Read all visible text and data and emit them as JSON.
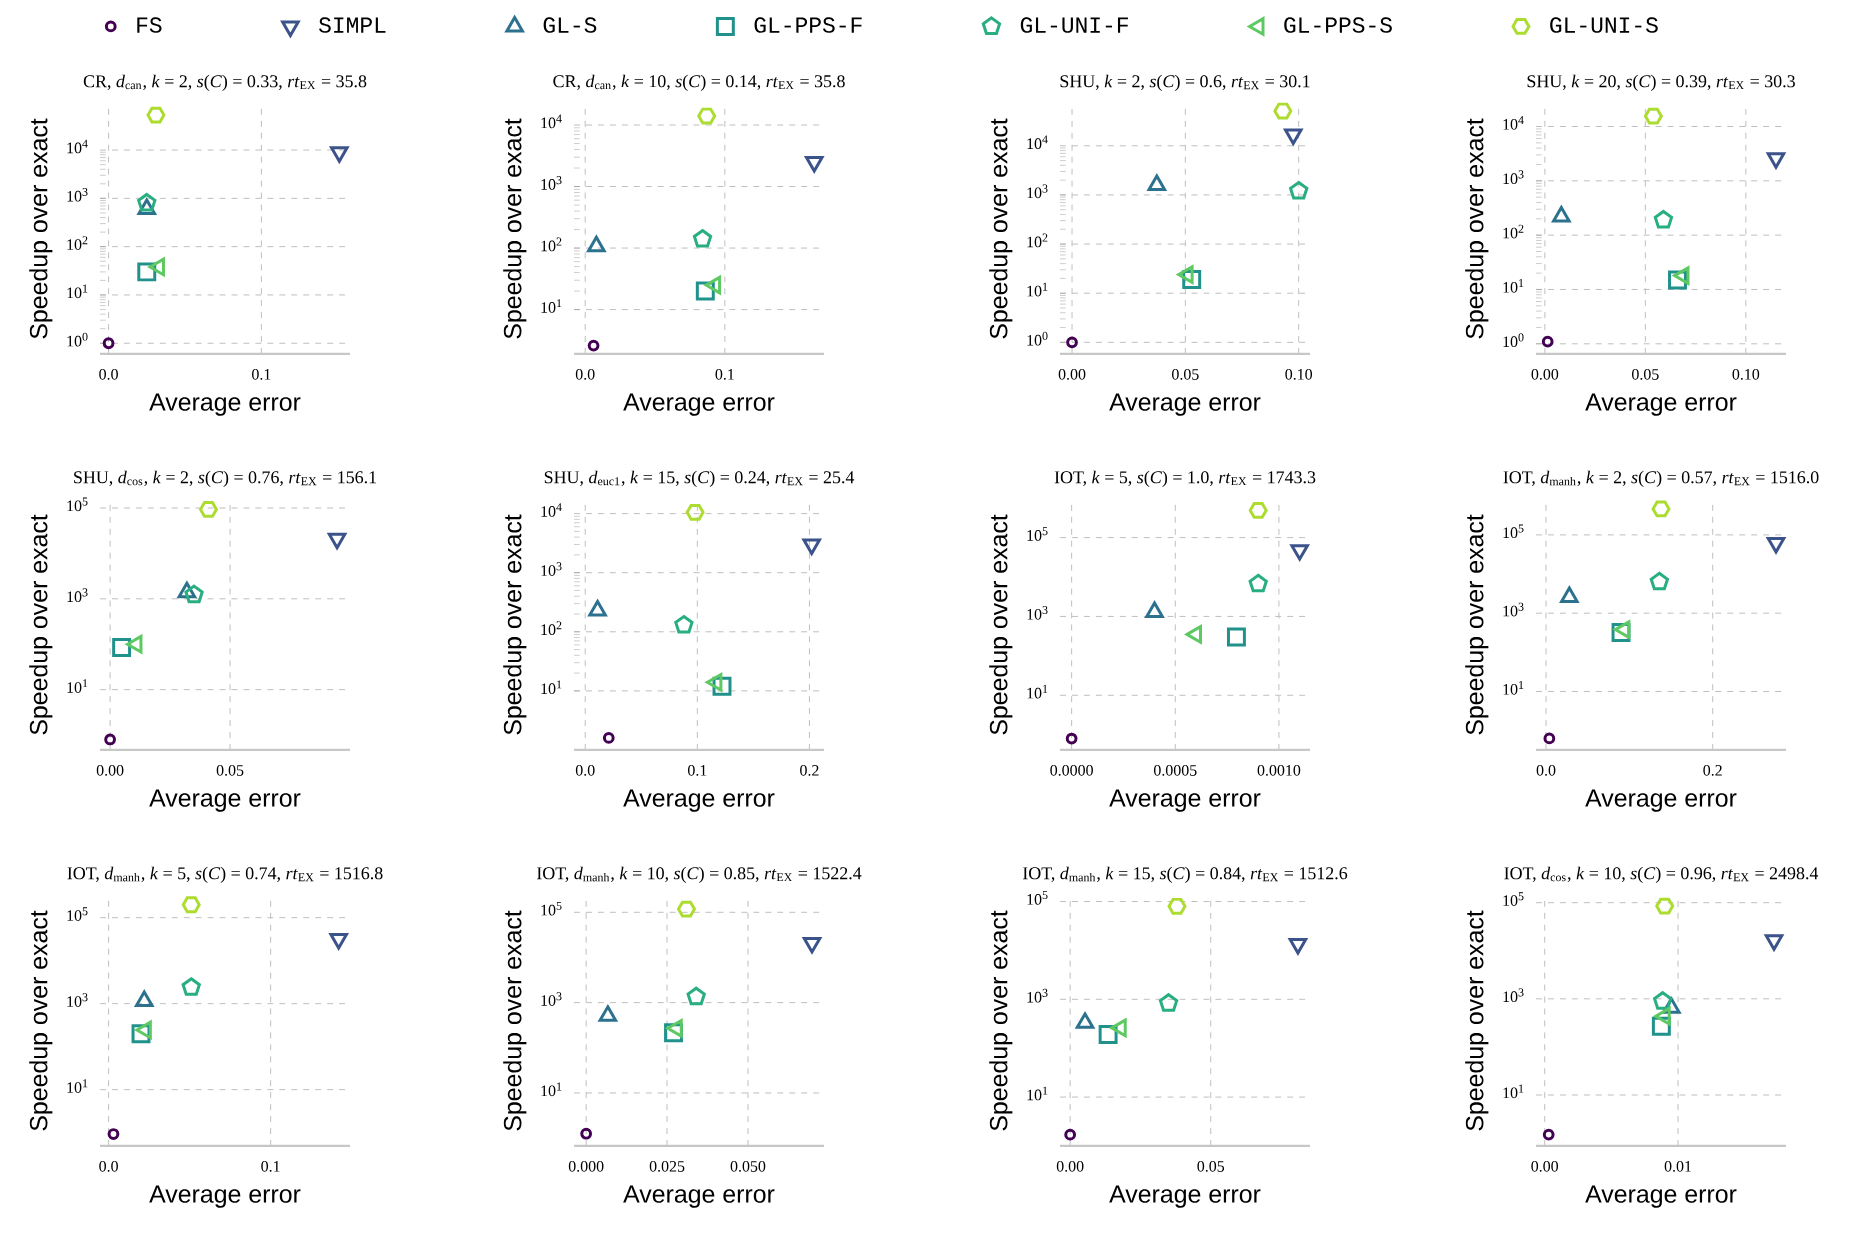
{
  "chart_data": [
    {
      "type": "scatter",
      "title": "CR, *d*$_{can}$, *k* = 2, *s*(*C*) = 0.33, *rt*$_{EX}$ = 35.8",
      "xlabel": "Average error",
      "ylabel": "Speedup over exact",
      "log": true,
      "grid": true,
      "legend": "top",
      "xlim": [
        -0.0056,
        0.158
      ],
      "ylim": [
        0.6,
        90000
      ],
      "xticks": [
        {
          "value": 0,
          "label": "0.0"
        },
        {
          "value": 0.1,
          "label": "0.1"
        }
      ],
      "yticks": [
        {
          "value": 1,
          "label": "10$^{0}$"
        },
        {
          "value": 10,
          "label": "10$^{1}$"
        },
        {
          "value": 100,
          "label": "10$^{2}$"
        },
        {
          "value": 1000,
          "label": "10$^{3}$"
        },
        {
          "value": 10000,
          "label": "10$^{4}$"
        }
      ],
      "series": [
        {
          "name": "FS",
          "color": "#440154",
          "marker": "circle",
          "x": [
            0
          ],
          "values": [
            1
          ]
        },
        {
          "name": "SIMPL",
          "color": "#3b528b",
          "marker": "triangle_down",
          "x": [
            0.151
          ],
          "values": [
            9000
          ]
        },
        {
          "name": "GL-S",
          "color": "#2c728e",
          "marker": "triangle",
          "x": [
            0.025
          ],
          "values": [
            600
          ]
        },
        {
          "name": "GL-PPS-F",
          "color": "#21918c",
          "marker": "square",
          "x": [
            0.025
          ],
          "values": [
            30
          ]
        },
        {
          "name": "GL-UNI-F",
          "color": "#28ae80",
          "x": [
            0.025
          ],
          "values": [
            800
          ]
        },
        {
          "name": "GL-PPS-S",
          "color": "#5ec962",
          "marker": "triangle_left",
          "x": [
            0.033
          ],
          "values": [
            38
          ]
        },
        {
          "name": "GL-UNI-S",
          "color": "#addc30",
          "x": [
            0.031
          ],
          "values": [
            53000
          ]
        }
      ]
    },
    {
      "type": "scatter",
      "title": "CR, *d*$_{can}$, *k* = 10, *s*(*C*) = 0.14, *rt*$_{EX}$ = 35.8",
      "xlabel": "Average error",
      "ylabel": "Speedup over exact",
      "log": true,
      "grid": true,
      "xlim": [
        -0.008,
        0.171
      ],
      "ylim": [
        1.9,
        22000
      ],
      "xticks": [
        {
          "value": 0,
          "label": "0.0"
        },
        {
          "value": 0.1,
          "label": "0.1"
        }
      ],
      "yticks": [
        {
          "value": 10,
          "label": "10$^{1}$"
        },
        {
          "value": 100,
          "label": "10$^{2}$"
        },
        {
          "value": 1000,
          "label": "10$^{3}$"
        },
        {
          "value": 10000,
          "label": "10$^{4}$"
        }
      ],
      "series": [
        {
          "color": "#440154",
          "marker": "circle",
          "x": [
            0.006
          ],
          "values": [
            2.6
          ]
        },
        {
          "color": "#3b528b",
          "marker": "triangle_down",
          "x": [
            0.164
          ],
          "values": [
            2500
          ]
        },
        {
          "color": "#2c728e",
          "marker": "triangle",
          "x": [
            0.008
          ],
          "values": [
            107
          ]
        },
        {
          "color": "#21918c",
          "marker": "square",
          "x": [
            0.086
          ],
          "values": [
            20
          ]
        },
        {
          "color": "#28ae80",
          "x": [
            0.084
          ],
          "values": [
            140
          ]
        },
        {
          "color": "#5ec962",
          "marker": "triangle_left",
          "x": [
            0.093
          ],
          "values": [
            25
          ]
        },
        {
          "color": "#addc30",
          "x": [
            0.087
          ],
          "values": [
            14000
          ]
        }
      ]
    },
    {
      "type": "scatter",
      "title": "SHU, *k* = 2, *s*(*C*) = 0.6, *rt*$_{EX}$ = 30.1",
      "xlabel": "Average error",
      "ylabel": "Speedup over exact",
      "log": true,
      "grid": true,
      "xlim": [
        -0.0053,
        0.105
      ],
      "ylim": [
        0.58,
        71000
      ],
      "xticks": [
        {
          "value": 0,
          "label": "0.00"
        },
        {
          "value": 0.05,
          "label": "0.05"
        },
        {
          "value": 0.1,
          "label": "0.10"
        }
      ],
      "yticks": [
        {
          "value": 1,
          "label": "10$^{0}$"
        },
        {
          "value": 10,
          "label": "10$^{1}$"
        },
        {
          "value": 100,
          "label": "10$^{2}$"
        },
        {
          "value": 1000,
          "label": "10$^{3}$"
        },
        {
          "value": 10000,
          "label": "10$^{4}$"
        }
      ],
      "series": [
        {
          "color": "#440154",
          "marker": "circle",
          "x": [
            0
          ],
          "values": [
            1
          ]
        },
        {
          "color": "#3b528b",
          "marker": "triangle_down",
          "x": [
            0.0976
          ],
          "values": [
            17000
          ]
        },
        {
          "color": "#2c728e",
          "marker": "triangle",
          "x": [
            0.0374
          ],
          "values": [
            1600
          ]
        },
        {
          "color": "#21918c",
          "marker": "square",
          "x": [
            0.0528
          ],
          "values": [
            19
          ]
        },
        {
          "color": "#28ae80",
          "x": [
            0.1
          ],
          "values": [
            1200
          ]
        },
        {
          "color": "#5ec962",
          "marker": "triangle_left",
          "x": [
            0.051
          ],
          "values": [
            24
          ]
        },
        {
          "color": "#addc30",
          "x": [
            0.093
          ],
          "values": [
            51000
          ]
        }
      ]
    },
    {
      "type": "scatter",
      "title": "SHU, *k* = 20, *s*(*C*) = 0.39, *rt*$_{EX}$ = 30.3",
      "xlabel": "Average error",
      "ylabel": "Speedup over exact",
      "log": true,
      "grid": true,
      "xlim": [
        -0.0044,
        0.12
      ],
      "ylim": [
        0.65,
        26000
      ],
      "xticks": [
        {
          "value": 0,
          "label": "0.00"
        },
        {
          "value": 0.05,
          "label": "0.05"
        },
        {
          "value": 0.1,
          "label": "0.10"
        }
      ],
      "yticks": [
        {
          "value": 1,
          "label": "10$^{0}$"
        },
        {
          "value": 10,
          "label": "10$^{1}$"
        },
        {
          "value": 100,
          "label": "10$^{2}$"
        },
        {
          "value": 1000,
          "label": "10$^{3}$"
        },
        {
          "value": 10000,
          "label": "10$^{4}$"
        }
      ],
      "series": [
        {
          "color": "#440154",
          "marker": "circle",
          "x": [
            0.0014
          ],
          "values": [
            1.1
          ]
        },
        {
          "color": "#3b528b",
          "marker": "triangle_down",
          "x": [
            0.115
          ],
          "values": [
            2600
          ]
        },
        {
          "color": "#2c728e",
          "marker": "triangle",
          "x": [
            0.0082
          ],
          "values": [
            220
          ]
        },
        {
          "color": "#21918c",
          "marker": "square",
          "x": [
            0.066
          ],
          "values": [
            15
          ]
        },
        {
          "color": "#28ae80",
          "x": [
            0.059
          ],
          "values": [
            190
          ]
        },
        {
          "color": "#5ec962",
          "marker": "triangle_left",
          "x": [
            0.069
          ],
          "values": [
            18
          ]
        },
        {
          "color": "#addc30",
          "x": [
            0.054
          ],
          "values": [
            15500
          ]
        }
      ]
    },
    {
      "type": "scatter",
      "title": "SHU, *d*$_{cos}$, *k* = 2, *s*(*C*) = 0.76, *rt*$_{EX}$ = 156.1",
      "xlabel": "Average error",
      "ylabel": "Speedup over exact",
      "log": true,
      "grid": true,
      "xlim": [
        -0.0042,
        0.1
      ],
      "ylim": [
        0.47,
        150000
      ],
      "xticks": [
        {
          "value": 0,
          "label": "0.00"
        },
        {
          "value": 0.05,
          "label": "0.05"
        }
      ],
      "yticks": [
        {
          "value": 10,
          "label": "10$^{1}$"
        },
        {
          "value": 1000,
          "label": "10$^{3}$"
        },
        {
          "value": 100000,
          "label": "10$^{5}$"
        }
      ],
      "series": [
        {
          "color": "#440154",
          "marker": "circle",
          "x": [
            0
          ],
          "values": [
            0.8
          ]
        },
        {
          "color": "#3b528b",
          "marker": "triangle_down",
          "x": [
            0.0946
          ],
          "values": [
            21000
          ]
        },
        {
          "color": "#2c728e",
          "marker": "triangle",
          "x": [
            0.032
          ],
          "values": [
            1400
          ]
        },
        {
          "color": "#21918c",
          "marker": "square",
          "x": [
            0.0048
          ],
          "values": [
            85
          ]
        },
        {
          "color": "#28ae80",
          "x": [
            0.035
          ],
          "values": [
            1230
          ]
        },
        {
          "color": "#5ec962",
          "marker": "triangle_left",
          "x": [
            0.011
          ],
          "values": [
            100
          ]
        },
        {
          "color": "#addc30",
          "x": [
            0.041
          ],
          "values": [
            93000
          ]
        }
      ]
    },
    {
      "type": "scatter",
      "title": "SHU, *d*$_{euc1}$, *k* = 15, *s*(*C*) = 0.24, *rt*$_{EX}$ = 25.4",
      "xlabel": "Average error",
      "ylabel": "Speedup over exact",
      "log": true,
      "grid": true,
      "xlim": [
        -0.01,
        0.213
      ],
      "ylim": [
        1.0,
        17000
      ],
      "xticks": [
        {
          "value": 0,
          "label": "0.0"
        },
        {
          "value": 0.1,
          "label": "0.1"
        },
        {
          "value": 0.2,
          "label": "0.2"
        }
      ],
      "yticks": [
        {
          "value": 10,
          "label": "10$^{1}$"
        },
        {
          "value": 100,
          "label": "10$^{2}$"
        },
        {
          "value": 1000,
          "label": "10$^{3}$"
        },
        {
          "value": 10000,
          "label": "10$^{4}$"
        }
      ],
      "series": [
        {
          "color": "#440154",
          "marker": "circle",
          "x": [
            0.021
          ],
          "values": [
            1.6
          ]
        },
        {
          "color": "#3b528b",
          "marker": "triangle_down",
          "x": [
            0.202
          ],
          "values": [
            3000
          ]
        },
        {
          "color": "#2c728e",
          "marker": "triangle",
          "x": [
            0.011
          ],
          "values": [
            230
          ]
        },
        {
          "color": "#21918c",
          "marker": "square",
          "x": [
            0.122
          ],
          "values": [
            12
          ]
        },
        {
          "color": "#28ae80",
          "x": [
            0.088
          ],
          "values": [
            130
          ]
        },
        {
          "color": "#5ec962",
          "marker": "triangle_left",
          "x": [
            0.117
          ],
          "values": [
            14
          ]
        },
        {
          "color": "#addc30",
          "x": [
            0.098
          ],
          "values": [
            10500
          ]
        }
      ]
    },
    {
      "type": "scatter",
      "title": "IOT, *k* = 5, *s*(*C*) = 1.0, *rt*$_{EX}$ = 1743.3",
      "xlabel": "Average error",
      "ylabel": "Speedup over exact",
      "log": true,
      "grid": true,
      "xlim": [
        -5.6e-05,
        0.00115
      ],
      "ylim": [
        0.41,
        900000
      ],
      "xticks": [
        {
          "value": 0,
          "label": "0.0000"
        },
        {
          "value": 0.0005,
          "label": "0.0005"
        },
        {
          "value": 0.001,
          "label": "0.0010"
        }
      ],
      "yticks": [
        {
          "value": 10,
          "label": "10$^{1}$"
        },
        {
          "value": 1000,
          "label": "10$^{3}$"
        },
        {
          "value": 100000,
          "label": "10$^{5}$"
        }
      ],
      "series": [
        {
          "color": "#440154",
          "marker": "circle",
          "x": [
            0
          ],
          "values": [
            0.8
          ]
        },
        {
          "color": "#3b528b",
          "marker": "triangle_down",
          "x": [
            0.0011
          ],
          "values": [
            48000
          ]
        },
        {
          "color": "#2c728e",
          "marker": "triangle",
          "x": [
            0.0004
          ],
          "values": [
            1300
          ]
        },
        {
          "color": "#21918c",
          "marker": "square",
          "x": [
            0.000795
          ],
          "values": [
            300
          ]
        },
        {
          "color": "#28ae80",
          "x": [
            0.0009
          ],
          "values": [
            6700
          ]
        },
        {
          "color": "#5ec962",
          "marker": "triangle_left",
          "x": [
            0.0006
          ],
          "values": [
            350
          ]
        },
        {
          "color": "#addc30",
          "x": [
            0.0009
          ],
          "values": [
            490000
          ]
        }
      ]
    },
    {
      "type": "scatter",
      "title": "IOT, *d*$_{manh}$, *k* = 2, *s*(*C*) = 0.57, *rt*$_{EX}$ = 1516.0",
      "xlabel": "Average error",
      "ylabel": "Speedup over exact",
      "log": true,
      "grid": true,
      "xlim": [
        -0.012,
        0.288
      ],
      "ylim": [
        0.32,
        780000
      ],
      "xticks": [
        {
          "value": 0,
          "label": "0.0"
        },
        {
          "value": 0.2,
          "label": "0.2"
        }
      ],
      "yticks": [
        {
          "value": 10,
          "label": "10$^{1}$"
        },
        {
          "value": 1000,
          "label": "10$^{3}$"
        },
        {
          "value": 100000,
          "label": "10$^{5}$"
        }
      ],
      "series": [
        {
          "color": "#440154",
          "marker": "circle",
          "x": [
            0.004
          ],
          "values": [
            0.63
          ]
        },
        {
          "color": "#3b528b",
          "marker": "triangle_down",
          "x": [
            0.276
          ],
          "values": [
            62000
          ]
        },
        {
          "color": "#2c728e",
          "marker": "triangle",
          "x": [
            0.028
          ],
          "values": [
            2600
          ]
        },
        {
          "color": "#21918c",
          "marker": "square",
          "x": [
            0.09
          ],
          "values": [
            320
          ]
        },
        {
          "color": "#28ae80",
          "x": [
            0.136
          ],
          "values": [
            6300
          ]
        },
        {
          "color": "#5ec962",
          "marker": "triangle_left",
          "x": [
            0.094
          ],
          "values": [
            380
          ]
        },
        {
          "color": "#addc30",
          "x": [
            0.138
          ],
          "values": [
            460000
          ]
        }
      ]
    },
    {
      "type": "scatter",
      "title": "IOT, *d*$_{manh}$, *k* = 5, *s*(*C*) = 0.74, *rt*$_{EX}$ = 1516.8",
      "xlabel": "Average error",
      "ylabel": "Speedup over exact",
      "log": true,
      "grid": true,
      "xlim": [
        -0.0053,
        0.149
      ],
      "ylim": [
        0.49,
        320000
      ],
      "xticks": [
        {
          "value": 0,
          "label": "0.0"
        },
        {
          "value": 0.1,
          "label": "0.1"
        }
      ],
      "yticks": [
        {
          "value": 10,
          "label": "10$^{1}$"
        },
        {
          "value": 1000,
          "label": "10$^{3}$"
        },
        {
          "value": 100000,
          "label": "10$^{5}$"
        }
      ],
      "series": [
        {
          "color": "#440154",
          "marker": "circle",
          "x": [
            0.003
          ],
          "values": [
            0.93
          ]
        },
        {
          "color": "#3b528b",
          "marker": "triangle_down",
          "x": [
            0.142
          ],
          "values": [
            32000
          ]
        },
        {
          "color": "#2c728e",
          "marker": "triangle",
          "x": [
            0.022
          ],
          "values": [
            1150
          ]
        },
        {
          "color": "#21918c",
          "marker": "square",
          "x": [
            0.02
          ],
          "values": [
            200
          ]
        },
        {
          "color": "#28ae80",
          "x": [
            0.051
          ],
          "values": [
            2400
          ]
        },
        {
          "color": "#5ec962",
          "marker": "triangle_left",
          "x": [
            0.023
          ],
          "values": [
            245
          ]
        },
        {
          "color": "#addc30",
          "x": [
            0.051
          ],
          "values": [
            200000
          ]
        }
      ]
    },
    {
      "type": "scatter",
      "title": "IOT, *d*$_{manh}$, *k* = 10, *s*(*C*) = 0.85, *rt*$_{EX}$ = 1522.4",
      "xlabel": "Average error",
      "ylabel": "Speedup over exact",
      "log": true,
      "grid": true,
      "xlim": [
        -0.00375,
        0.0735
      ],
      "ylim": [
        0.67,
        230000
      ],
      "xticks": [
        {
          "value": 0,
          "label": "0.000"
        },
        {
          "value": 0.025,
          "label": "0.025"
        },
        {
          "value": 0.05,
          "label": "0.050"
        }
      ],
      "yticks": [
        {
          "value": 10,
          "label": "10$^{1}$"
        },
        {
          "value": 1000,
          "label": "10$^{3}$"
        },
        {
          "value": 100000,
          "label": "10$^{5}$"
        }
      ],
      "series": [
        {
          "color": "#440154",
          "marker": "circle",
          "x": [
            0
          ],
          "values": [
            1.25
          ]
        },
        {
          "color": "#3b528b",
          "marker": "triangle_down",
          "x": [
            0.0698
          ],
          "values": [
            21000
          ]
        },
        {
          "color": "#2c728e",
          "marker": "triangle",
          "x": [
            0.0067
          ],
          "values": [
            510
          ]
        },
        {
          "color": "#21918c",
          "marker": "square",
          "x": [
            0.027
          ],
          "values": [
            215
          ]
        },
        {
          "color": "#28ae80",
          "x": [
            0.034
          ],
          "values": [
            1350
          ]
        },
        {
          "color": "#5ec962",
          "marker": "triangle_left",
          "x": [
            0.028
          ],
          "values": [
            270
          ]
        },
        {
          "color": "#addc30",
          "x": [
            0.031
          ],
          "values": [
            118000
          ]
        }
      ]
    },
    {
      "type": "scatter",
      "title": "IOT, *d*$_{manh}$, *k* = 15, *s*(*C*) = 0.84, *rt*$_{EX}$ = 1512.6",
      "xlabel": "Average error",
      "ylabel": "Speedup over exact",
      "log": true,
      "grid": true,
      "xlim": [
        -0.0036,
        0.0853
      ],
      "ylim": [
        1.0,
        130000
      ],
      "xticks": [
        {
          "value": 0,
          "label": "0.00"
        },
        {
          "value": 0.05,
          "label": "0.05"
        }
      ],
      "yticks": [
        {
          "value": 10,
          "label": "10$^{1}$"
        },
        {
          "value": 1000,
          "label": "10$^{3}$"
        },
        {
          "value": 100000,
          "label": "10$^{5}$"
        }
      ],
      "series": [
        {
          "color": "#440154",
          "marker": "circle",
          "x": [
            0
          ],
          "values": [
            1.7
          ]
        },
        {
          "color": "#3b528b",
          "marker": "triangle_down",
          "x": [
            0.081
          ],
          "values": [
            13500
          ]
        },
        {
          "color": "#2c728e",
          "marker": "triangle",
          "x": [
            0.0053
          ],
          "values": [
            330
          ]
        },
        {
          "color": "#21918c",
          "marker": "square",
          "x": [
            0.0135
          ],
          "values": [
            190
          ]
        },
        {
          "color": "#28ae80",
          "x": [
            0.035
          ],
          "values": [
            830
          ]
        },
        {
          "color": "#5ec962",
          "marker": "triangle_left",
          "x": [
            0.018
          ],
          "values": [
            260
          ]
        },
        {
          "color": "#addc30",
          "x": [
            0.038
          ],
          "values": [
            80000
          ]
        }
      ]
    },
    {
      "type": "scatter",
      "title": "IOT, *d*$_{cos}$, *k* = 10, *s*(*C*) = 0.96, *rt*$_{EX}$ = 2498.4",
      "xlabel": "Average error",
      "ylabel": "Speedup over exact",
      "log": true,
      "grid": true,
      "xlim": [
        -0.00065,
        0.0181
      ],
      "ylim": [
        0.87,
        138000
      ],
      "xticks": [
        {
          "value": 0,
          "label": "0.00"
        },
        {
          "value": 0.01,
          "label": "0.01"
        }
      ],
      "yticks": [
        {
          "value": 10,
          "label": "10$^{1}$"
        },
        {
          "value": 1000,
          "label": "10$^{3}$"
        },
        {
          "value": 100000,
          "label": "10$^{5}$"
        }
      ],
      "series": [
        {
          "color": "#440154",
          "marker": "circle",
          "x": [
            0.0003
          ],
          "values": [
            1.5
          ]
        },
        {
          "color": "#3b528b",
          "marker": "triangle_down",
          "x": [
            0.0172
          ],
          "values": [
            16500
          ]
        },
        {
          "color": "#2c728e",
          "marker": "triangle",
          "x": [
            0.0095
          ],
          "values": [
            650
          ]
        },
        {
          "color": "#21918c",
          "marker": "square",
          "x": [
            0.00875
          ],
          "values": [
            270
          ]
        },
        {
          "color": "#28ae80",
          "x": [
            0.00885
          ],
          "values": [
            890
          ]
        },
        {
          "color": "#5ec962",
          "marker": "triangle_left",
          "x": [
            0.009
          ],
          "values": [
            435
          ]
        },
        {
          "color": "#addc30",
          "x": [
            0.009
          ],
          "values": [
            85000
          ]
        }
      ]
    }
  ]
}
